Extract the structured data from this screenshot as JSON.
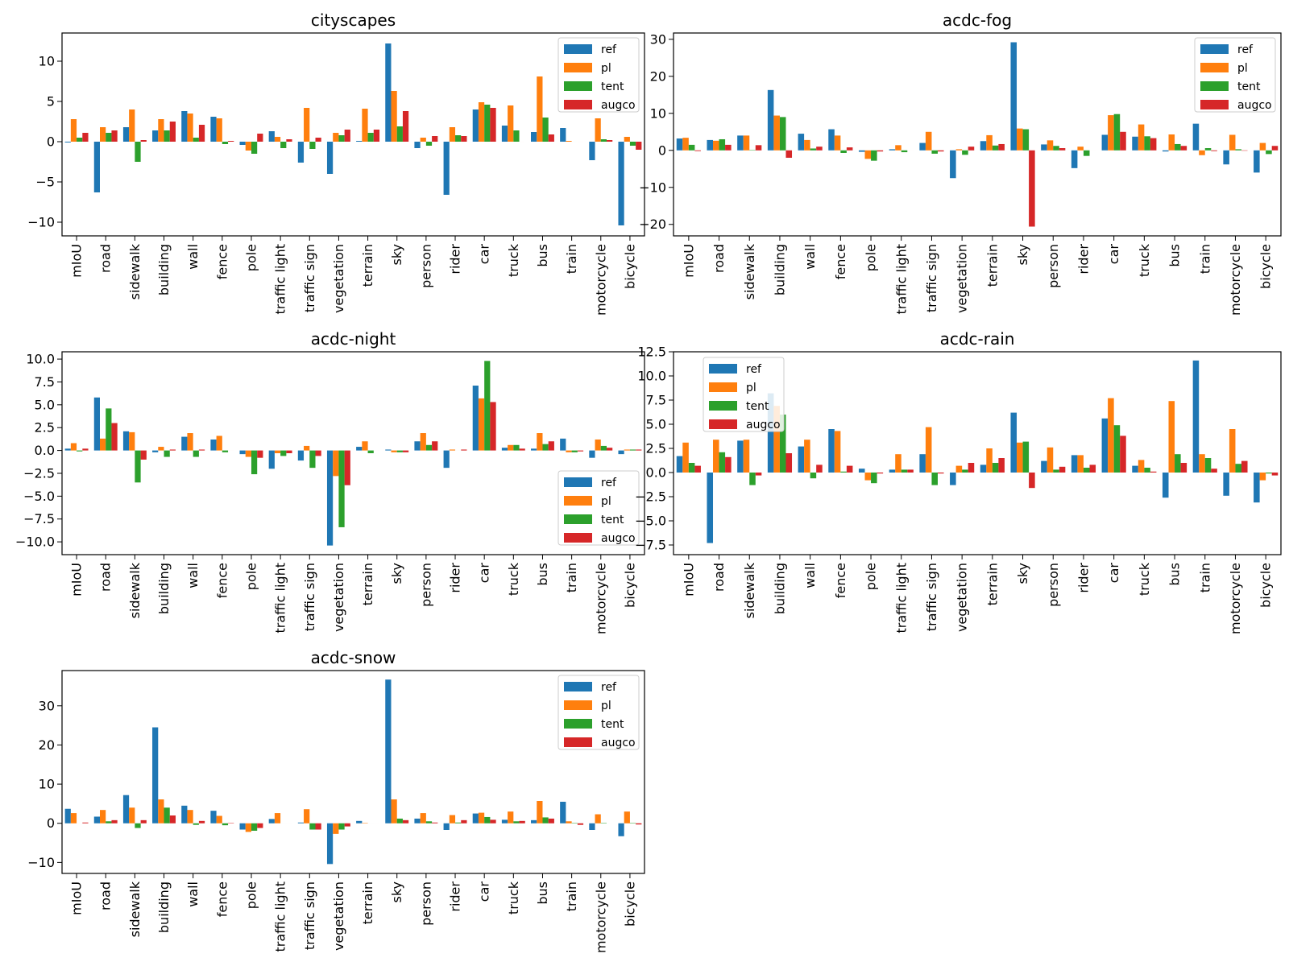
{
  "figure": {
    "width": 1600,
    "height": 1200
  },
  "colors": {
    "ref": "#1f77b4",
    "pl": "#ff7f0e",
    "tent": "#2ca02c",
    "augco": "#d62728"
  },
  "chart_data": [
    {
      "type": "bar",
      "title": "cityscapes",
      "categories": [
        "mIoU",
        "road",
        "sidewalk",
        "building",
        "wall",
        "fence",
        "pole",
        "traffic light",
        "traffic sign",
        "vegetation",
        "terrain",
        "sky",
        "person",
        "rider",
        "car",
        "truck",
        "bus",
        "train",
        "motorcycle",
        "bicycle"
      ],
      "series": [
        {
          "name": "ref",
          "values": [
            -0.1,
            -6.3,
            1.8,
            1.4,
            3.8,
            3.1,
            -0.4,
            1.3,
            -2.6,
            -4.0,
            0.1,
            12.2,
            -0.8,
            -6.6,
            4.0,
            2.0,
            1.2,
            1.7,
            -2.3,
            -10.4
          ]
        },
        {
          "name": "pl",
          "values": [
            2.8,
            1.8,
            4.0,
            2.8,
            3.5,
            2.9,
            -1.1,
            0.6,
            4.2,
            1.1,
            4.1,
            6.3,
            0.5,
            1.8,
            4.9,
            4.5,
            8.1,
            0.1,
            2.9,
            0.6
          ]
        },
        {
          "name": "tent",
          "values": [
            0.5,
            1.1,
            -2.5,
            1.4,
            0.5,
            -0.3,
            -1.5,
            -0.8,
            -0.9,
            0.8,
            1.1,
            1.9,
            -0.5,
            0.8,
            4.6,
            1.4,
            3.0,
            0.0,
            0.3,
            -0.5
          ]
        },
        {
          "name": "augco",
          "values": [
            1.1,
            1.4,
            0.2,
            2.5,
            2.1,
            0.1,
            1.0,
            0.3,
            0.5,
            1.5,
            1.5,
            3.8,
            0.7,
            0.7,
            4.2,
            0.0,
            0.9,
            0.0,
            0.2,
            -1.0
          ]
        }
      ],
      "yticks": [
        -10,
        -5,
        0,
        5,
        10
      ],
      "ylim": [
        -11.7,
        13.5
      ],
      "legend": "top-right"
    },
    {
      "type": "bar",
      "title": "acdc-fog",
      "categories": [
        "mIoU",
        "road",
        "sidewalk",
        "building",
        "wall",
        "fence",
        "pole",
        "traffic light",
        "traffic sign",
        "vegetation",
        "terrain",
        "sky",
        "person",
        "rider",
        "car",
        "truck",
        "bus",
        "train",
        "motorcycle",
        "bicycle"
      ],
      "series": [
        {
          "name": "ref",
          "values": [
            3.2,
            2.8,
            4.0,
            16.3,
            4.5,
            5.7,
            -0.4,
            0.3,
            2.0,
            -7.5,
            2.5,
            29.2,
            1.6,
            -4.8,
            4.2,
            3.7,
            -0.3,
            7.2,
            -3.8,
            -6.0
          ]
        },
        {
          "name": "pl",
          "values": [
            3.4,
            2.6,
            4.0,
            9.4,
            2.8,
            4.0,
            -2.3,
            1.4,
            5.0,
            0.3,
            4.1,
            5.9,
            2.7,
            1.0,
            9.5,
            7.0,
            4.3,
            -1.3,
            4.2,
            2.0
          ]
        },
        {
          "name": "tent",
          "values": [
            1.5,
            3.0,
            0.1,
            9.0,
            0.5,
            -0.7,
            -2.8,
            -0.5,
            -0.9,
            -1.2,
            1.3,
            5.7,
            1.2,
            -1.5,
            9.8,
            3.8,
            1.7,
            0.6,
            0.3,
            -1.0
          ]
        },
        {
          "name": "augco",
          "values": [
            -0.2,
            1.5,
            1.4,
            -2.0,
            1.0,
            0.8,
            -0.3,
            0.0,
            -0.3,
            1.0,
            1.7,
            -20.6,
            0.6,
            0.0,
            5.0,
            3.3,
            1.2,
            -0.2,
            -0.1,
            1.2
          ]
        }
      ],
      "yticks": [
        -20,
        -10,
        0,
        10,
        20,
        30
      ],
      "ylim": [
        -23.1,
        31.7
      ],
      "legend": "top-right"
    },
    {
      "type": "bar",
      "title": "acdc-night",
      "categories": [
        "mIoU",
        "road",
        "sidewalk",
        "building",
        "wall",
        "fence",
        "pole",
        "traffic light",
        "traffic sign",
        "vegetation",
        "terrain",
        "sky",
        "person",
        "rider",
        "car",
        "truck",
        "bus",
        "train",
        "motorcycle",
        "bicycle"
      ],
      "series": [
        {
          "name": "ref",
          "values": [
            0.2,
            5.8,
            2.1,
            -0.2,
            1.5,
            1.2,
            -0.4,
            -2.0,
            -1.1,
            -10.4,
            0.4,
            0.1,
            1.0,
            -1.9,
            7.1,
            0.3,
            0.2,
            1.3,
            -0.8,
            -0.4
          ]
        },
        {
          "name": "pl",
          "values": [
            0.8,
            1.3,
            2.0,
            0.4,
            1.9,
            1.6,
            -0.7,
            -0.3,
            0.5,
            -2.8,
            1.0,
            -0.2,
            1.9,
            0.1,
            5.7,
            0.6,
            1.9,
            -0.2,
            1.2,
            0.1
          ]
        },
        {
          "name": "tent",
          "values": [
            -0.1,
            4.6,
            -3.5,
            -0.7,
            -0.7,
            -0.2,
            -2.6,
            -0.6,
            -1.9,
            -8.4,
            -0.3,
            -0.2,
            0.6,
            0.0,
            9.8,
            0.6,
            0.7,
            -0.2,
            0.5,
            0.1
          ]
        },
        {
          "name": "augco",
          "values": [
            0.2,
            3.0,
            -1.0,
            0.1,
            0.1,
            0.0,
            -0.8,
            -0.3,
            -0.6,
            -3.8,
            0.0,
            -0.2,
            1.0,
            0.1,
            5.3,
            0.2,
            1.0,
            -0.1,
            0.3,
            0.1
          ]
        }
      ],
      "yticks": [
        -10.0,
        -7.5,
        -5.0,
        -2.5,
        0.0,
        2.5,
        5.0,
        7.5,
        10.0
      ],
      "tick_labels": [
        "−10.0",
        "−7.5",
        "−5.0",
        "−2.5",
        "0.0",
        "2.5",
        "5.0",
        "7.5",
        "10.0"
      ],
      "ylim": [
        -11.4,
        10.8
      ],
      "legend": "bottom-right"
    },
    {
      "type": "bar",
      "title": "acdc-rain",
      "categories": [
        "mIoU",
        "road",
        "sidewalk",
        "building",
        "wall",
        "fence",
        "pole",
        "traffic light",
        "traffic sign",
        "vegetation",
        "terrain",
        "sky",
        "person",
        "rider",
        "car",
        "truck",
        "bus",
        "train",
        "motorcycle",
        "bicycle"
      ],
      "series": [
        {
          "name": "ref",
          "values": [
            1.7,
            -7.3,
            3.3,
            8.2,
            2.7,
            4.5,
            0.4,
            0.3,
            1.9,
            -1.3,
            0.8,
            6.2,
            1.2,
            1.8,
            5.6,
            0.7,
            -2.6,
            11.6,
            -2.4,
            -3.1
          ]
        },
        {
          "name": "pl",
          "values": [
            3.1,
            3.4,
            3.4,
            6.9,
            3.4,
            4.3,
            -0.8,
            1.9,
            4.7,
            0.7,
            2.5,
            3.1,
            2.6,
            1.8,
            7.7,
            1.3,
            7.4,
            1.9,
            4.5,
            -0.8
          ]
        },
        {
          "name": "tent",
          "values": [
            1.0,
            2.1,
            -1.3,
            6.0,
            -0.6,
            0.1,
            -1.1,
            0.3,
            -1.3,
            0.3,
            1.0,
            3.2,
            0.3,
            0.5,
            4.9,
            0.5,
            1.9,
            1.5,
            0.9,
            -0.1
          ]
        },
        {
          "name": "augco",
          "values": [
            0.7,
            1.6,
            -0.3,
            2.0,
            0.8,
            0.7,
            -0.1,
            0.3,
            -0.1,
            1.0,
            1.5,
            -1.6,
            0.6,
            0.8,
            3.8,
            0.1,
            1.0,
            0.4,
            1.2,
            -0.3
          ]
        }
      ],
      "yticks": [
        -7.5,
        -5.0,
        -2.5,
        0.0,
        2.5,
        5.0,
        7.5,
        10.0,
        12.5
      ],
      "tick_labels": [
        "−7.5",
        "−5.0",
        "−2.5",
        "0.0",
        "2.5",
        "5.0",
        "7.5",
        "10.0",
        "12.5"
      ],
      "ylim": [
        -8.5,
        12.5
      ],
      "legend": "top-left"
    },
    {
      "type": "bar",
      "title": "acdc-snow",
      "categories": [
        "mIoU",
        "road",
        "sidewalk",
        "building",
        "wall",
        "fence",
        "pole",
        "traffic light",
        "traffic sign",
        "vegetation",
        "terrain",
        "sky",
        "person",
        "rider",
        "car",
        "truck",
        "bus",
        "train",
        "motorcycle",
        "bicycle"
      ],
      "series": [
        {
          "name": "ref",
          "values": [
            3.7,
            1.7,
            7.2,
            24.5,
            4.5,
            3.2,
            -1.6,
            1.1,
            0.2,
            -10.4,
            0.6,
            36.7,
            1.2,
            -1.7,
            2.5,
            0.9,
            0.8,
            5.5,
            -1.7,
            -3.3
          ]
        },
        {
          "name": "pl",
          "values": [
            2.6,
            3.4,
            4.0,
            6.1,
            3.4,
            1.9,
            -2.2,
            2.6,
            3.6,
            -2.7,
            0.1,
            6.1,
            2.6,
            2.1,
            2.7,
            3.0,
            5.7,
            0.5,
            2.3,
            3.0
          ]
        },
        {
          "name": "tent",
          "values": [
            0.0,
            0.5,
            -1.2,
            4.0,
            -0.4,
            -0.5,
            -1.9,
            0.0,
            -1.6,
            -1.6,
            0.0,
            1.2,
            0.5,
            0.2,
            1.6,
            0.5,
            1.5,
            0.1,
            0.1,
            0.1
          ]
        },
        {
          "name": "augco",
          "values": [
            0.2,
            0.8,
            0.8,
            2.0,
            0.6,
            0.1,
            -1.2,
            0.0,
            -1.6,
            -0.8,
            0.0,
            0.8,
            0.2,
            0.8,
            0.9,
            0.6,
            1.2,
            -0.4,
            0.0,
            -0.3
          ]
        }
      ],
      "yticks": [
        -10,
        0,
        10,
        20,
        30
      ],
      "ylim": [
        -12.8,
        39.0
      ],
      "legend": "top-right"
    }
  ]
}
